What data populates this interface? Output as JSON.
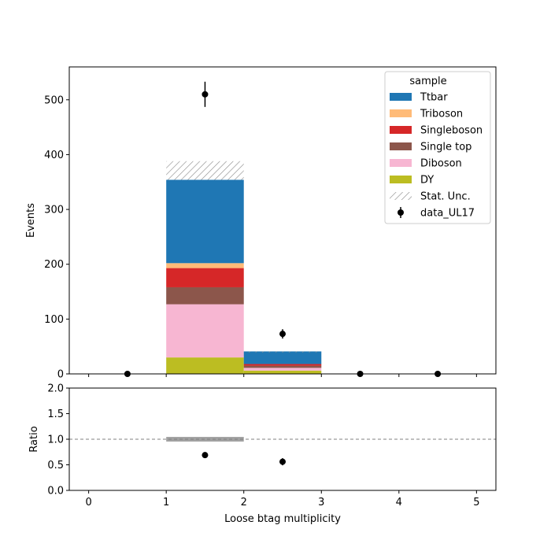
{
  "chart_data": [
    {
      "type": "bar",
      "stacked": true,
      "xlabel": "",
      "ylabel": "Events",
      "xlim": [
        -0.25,
        5.25
      ],
      "ylim": [
        0,
        560
      ],
      "yticks": [
        0,
        100,
        200,
        300,
        400,
        500
      ],
      "ytick_labels": [
        "0",
        "100",
        "200",
        "300",
        "400",
        "500"
      ],
      "bin_edges": [
        0,
        1,
        2,
        3,
        4,
        5
      ],
      "series": [
        {
          "name": "DY",
          "color": "#bcbd22",
          "values": [
            0,
            30,
            6,
            0,
            0
          ]
        },
        {
          "name": "Diboson",
          "color": "#f7b6d2",
          "values": [
            0,
            97,
            5,
            0,
            0
          ]
        },
        {
          "name": "Single top",
          "color": "#8c564b",
          "values": [
            0,
            31,
            4,
            0,
            0
          ]
        },
        {
          "name": "Singleboson",
          "color": "#d62728",
          "values": [
            0,
            35,
            3,
            0,
            0
          ]
        },
        {
          "name": "Triboson",
          "color": "#ffbb78",
          "values": [
            0,
            9,
            0,
            0,
            0
          ]
        },
        {
          "name": "Ttbar",
          "color": "#1f77b4",
          "values": [
            0,
            152,
            23,
            0,
            0
          ]
        }
      ],
      "stat_unc": {
        "name": "Stat. Unc.",
        "up": [
          0,
          388,
          41,
          0,
          0
        ],
        "down": [
          0,
          354,
          41,
          0,
          0
        ]
      },
      "data_points": {
        "name": "data_UL17",
        "x": [
          0.5,
          1.5,
          2.5,
          3.5,
          4.5
        ],
        "y": [
          0,
          510,
          73,
          0,
          0
        ],
        "yerr": [
          0,
          23,
          8.5,
          0,
          0
        ]
      },
      "legend": {
        "title": "sample",
        "placement": "top-right",
        "entries": [
          "Ttbar",
          "Triboson",
          "Singleboson",
          "Single top",
          "Diboson",
          "DY",
          "Stat. Unc.",
          "data_UL17"
        ]
      }
    },
    {
      "type": "scatter",
      "xlabel": "Loose btag multiplicity",
      "ylabel": "Ratio",
      "xlim": [
        -0.25,
        5.25
      ],
      "ylim": [
        0,
        2
      ],
      "yticks": [
        0,
        0.5,
        1.0,
        1.5,
        2.0
      ],
      "ytick_labels": [
        "0.0",
        "0.5",
        "1.0",
        "1.5",
        "2.0"
      ],
      "xticks": [
        0,
        1,
        2,
        3,
        4,
        5
      ],
      "xtick_labels": [
        "0",
        "1",
        "2",
        "3",
        "4",
        "5"
      ],
      "reference_line": 1.0,
      "unc_band": {
        "x0": 1,
        "x1": 2,
        "low": 0.955,
        "high": 1.045
      },
      "points": [
        {
          "x": 1.5,
          "y": 0.69,
          "yerr": 0.03
        },
        {
          "x": 2.5,
          "y": 0.56,
          "yerr": 0.07
        }
      ]
    }
  ]
}
